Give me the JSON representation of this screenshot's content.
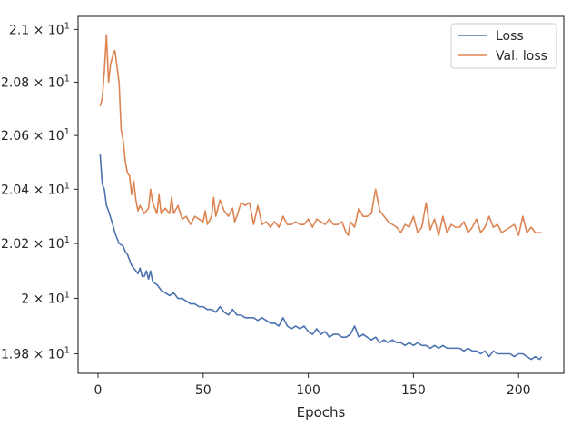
{
  "chart_data": {
    "type": "line",
    "title": "",
    "xlabel": "Epochs",
    "ylabel": "",
    "xlim": [
      -9.5,
      221.5
    ],
    "ylim": [
      19.73,
      21.05
    ],
    "yscale": "log",
    "grid": false,
    "legend_position": "top-right",
    "x_ticks": [
      0,
      50,
      100,
      150,
      200
    ],
    "x_tick_labels": [
      "0",
      "50",
      "100",
      "150",
      "200"
    ],
    "y_ticks": [
      19.8,
      20.0,
      20.2,
      20.4,
      20.6,
      20.8,
      21.0
    ],
    "y_tick_labels": [
      {
        "mantissa": "1.98",
        "sep": " × ",
        "base": "10",
        "exp": "1"
      },
      {
        "mantissa": "2",
        "sep": " × ",
        "base": "10",
        "exp": "1"
      },
      {
        "mantissa": "2.02",
        "sep": " × ",
        "base": "10",
        "exp": "1"
      },
      {
        "mantissa": "2.04",
        "sep": " × ",
        "base": "10",
        "exp": "1"
      },
      {
        "mantissa": "2.06",
        "sep": " × ",
        "base": "10",
        "exp": "1"
      },
      {
        "mantissa": "2.08",
        "sep": " × ",
        "base": "10",
        "exp": "1"
      },
      {
        "mantissa": "2.1",
        "sep": " × ",
        "base": "10",
        "exp": "1"
      }
    ],
    "series": [
      {
        "name": "Loss",
        "color": "#4c72b0",
        "points": [
          [
            1,
            20.53
          ],
          [
            2,
            20.42
          ],
          [
            3,
            20.4
          ],
          [
            4,
            20.34
          ],
          [
            5,
            20.32
          ],
          [
            7,
            20.27
          ],
          [
            8,
            20.24
          ],
          [
            9,
            20.22
          ],
          [
            10,
            20.2
          ],
          [
            12,
            20.19
          ],
          [
            13,
            20.17
          ],
          [
            14,
            20.16
          ],
          [
            16,
            20.12
          ],
          [
            17,
            20.11
          ],
          [
            18,
            20.1
          ],
          [
            19,
            20.09
          ],
          [
            20,
            20.11
          ],
          [
            21,
            20.08
          ],
          [
            22,
            20.08
          ],
          [
            23,
            20.1
          ],
          [
            24,
            20.07
          ],
          [
            25,
            20.1
          ],
          [
            26,
            20.06
          ],
          [
            28,
            20.05
          ],
          [
            30,
            20.03
          ],
          [
            32,
            20.02
          ],
          [
            34,
            20.01
          ],
          [
            36,
            20.02
          ],
          [
            38,
            20.0
          ],
          [
            40,
            20.0
          ],
          [
            42,
            19.99
          ],
          [
            44,
            19.98
          ],
          [
            46,
            19.98
          ],
          [
            48,
            19.97
          ],
          [
            50,
            19.97
          ],
          [
            52,
            19.96
          ],
          [
            54,
            19.96
          ],
          [
            56,
            19.95
          ],
          [
            58,
            19.97
          ],
          [
            60,
            19.95
          ],
          [
            62,
            19.94
          ],
          [
            64,
            19.96
          ],
          [
            66,
            19.94
          ],
          [
            68,
            19.94
          ],
          [
            70,
            19.93
          ],
          [
            72,
            19.93
          ],
          [
            74,
            19.93
          ],
          [
            76,
            19.92
          ],
          [
            78,
            19.93
          ],
          [
            80,
            19.92
          ],
          [
            82,
            19.91
          ],
          [
            84,
            19.91
          ],
          [
            86,
            19.9
          ],
          [
            88,
            19.93
          ],
          [
            90,
            19.9
          ],
          [
            92,
            19.89
          ],
          [
            94,
            19.9
          ],
          [
            96,
            19.89
          ],
          [
            98,
            19.9
          ],
          [
            100,
            19.88
          ],
          [
            102,
            19.87
          ],
          [
            104,
            19.89
          ],
          [
            106,
            19.87
          ],
          [
            108,
            19.88
          ],
          [
            110,
            19.86
          ],
          [
            112,
            19.87
          ],
          [
            114,
            19.87
          ],
          [
            116,
            19.86
          ],
          [
            118,
            19.86
          ],
          [
            120,
            19.87
          ],
          [
            122,
            19.9
          ],
          [
            124,
            19.86
          ],
          [
            126,
            19.87
          ],
          [
            128,
            19.86
          ],
          [
            130,
            19.85
          ],
          [
            132,
            19.86
          ],
          [
            134,
            19.84
          ],
          [
            136,
            19.85
          ],
          [
            138,
            19.84
          ],
          [
            140,
            19.85
          ],
          [
            142,
            19.84
          ],
          [
            144,
            19.84
          ],
          [
            146,
            19.83
          ],
          [
            148,
            19.84
          ],
          [
            150,
            19.83
          ],
          [
            152,
            19.84
          ],
          [
            154,
            19.83
          ],
          [
            156,
            19.83
          ],
          [
            158,
            19.82
          ],
          [
            160,
            19.83
          ],
          [
            162,
            19.82
          ],
          [
            164,
            19.83
          ],
          [
            166,
            19.82
          ],
          [
            168,
            19.82
          ],
          [
            170,
            19.82
          ],
          [
            172,
            19.82
          ],
          [
            174,
            19.81
          ],
          [
            176,
            19.82
          ],
          [
            178,
            19.81
          ],
          [
            180,
            19.81
          ],
          [
            182,
            19.8
          ],
          [
            184,
            19.81
          ],
          [
            186,
            19.79
          ],
          [
            188,
            19.81
          ],
          [
            190,
            19.8
          ],
          [
            192,
            19.8
          ],
          [
            194,
            19.8
          ],
          [
            196,
            19.8
          ],
          [
            198,
            19.79
          ],
          [
            200,
            19.8
          ],
          [
            202,
            19.8
          ],
          [
            204,
            19.79
          ],
          [
            206,
            19.78
          ],
          [
            208,
            19.79
          ],
          [
            210,
            19.78
          ],
          [
            211,
            19.79
          ]
        ]
      },
      {
        "name": "Val. loss",
        "color": "#dd8452",
        "points": [
          [
            1,
            20.71
          ],
          [
            2,
            20.74
          ],
          [
            3,
            20.84
          ],
          [
            4,
            20.98
          ],
          [
            5,
            20.8
          ],
          [
            6,
            20.87
          ],
          [
            7,
            20.9
          ],
          [
            8,
            20.92
          ],
          [
            9,
            20.86
          ],
          [
            10,
            20.8
          ],
          [
            11,
            20.62
          ],
          [
            12,
            20.58
          ],
          [
            13,
            20.5
          ],
          [
            14,
            20.46
          ],
          [
            15,
            20.45
          ],
          [
            16,
            20.38
          ],
          [
            17,
            20.43
          ],
          [
            18,
            20.36
          ],
          [
            19,
            20.32
          ],
          [
            20,
            20.34
          ],
          [
            22,
            20.31
          ],
          [
            24,
            20.33
          ],
          [
            25,
            20.4
          ],
          [
            26,
            20.35
          ],
          [
            28,
            20.31
          ],
          [
            29,
            20.38
          ],
          [
            30,
            20.31
          ],
          [
            32,
            20.33
          ],
          [
            34,
            20.31
          ],
          [
            35,
            20.37
          ],
          [
            36,
            20.31
          ],
          [
            38,
            20.34
          ],
          [
            40,
            20.29
          ],
          [
            42,
            20.3
          ],
          [
            44,
            20.27
          ],
          [
            46,
            20.3
          ],
          [
            48,
            20.29
          ],
          [
            50,
            20.28
          ],
          [
            51,
            20.32
          ],
          [
            52,
            20.27
          ],
          [
            54,
            20.3
          ],
          [
            55,
            20.37
          ],
          [
            56,
            20.3
          ],
          [
            58,
            20.36
          ],
          [
            60,
            20.32
          ],
          [
            62,
            20.3
          ],
          [
            64,
            20.33
          ],
          [
            65,
            20.28
          ],
          [
            66,
            20.3
          ],
          [
            68,
            20.35
          ],
          [
            70,
            20.34
          ],
          [
            72,
            20.35
          ],
          [
            74,
            20.27
          ],
          [
            76,
            20.34
          ],
          [
            78,
            20.27
          ],
          [
            80,
            20.28
          ],
          [
            82,
            20.26
          ],
          [
            84,
            20.28
          ],
          [
            86,
            20.26
          ],
          [
            88,
            20.3
          ],
          [
            90,
            20.27
          ],
          [
            92,
            20.27
          ],
          [
            94,
            20.28
          ],
          [
            96,
            20.27
          ],
          [
            98,
            20.27
          ],
          [
            100,
            20.29
          ],
          [
            102,
            20.26
          ],
          [
            104,
            20.29
          ],
          [
            106,
            20.28
          ],
          [
            108,
            20.27
          ],
          [
            110,
            20.29
          ],
          [
            112,
            20.27
          ],
          [
            114,
            20.27
          ],
          [
            116,
            20.28
          ],
          [
            118,
            20.24
          ],
          [
            119,
            20.23
          ],
          [
            120,
            20.28
          ],
          [
            122,
            20.26
          ],
          [
            124,
            20.33
          ],
          [
            126,
            20.3
          ],
          [
            128,
            20.3
          ],
          [
            130,
            20.31
          ],
          [
            132,
            20.4
          ],
          [
            134,
            20.32
          ],
          [
            136,
            20.3
          ],
          [
            138,
            20.28
          ],
          [
            140,
            20.27
          ],
          [
            142,
            20.26
          ],
          [
            144,
            20.24
          ],
          [
            146,
            20.27
          ],
          [
            148,
            20.26
          ],
          [
            150,
            20.3
          ],
          [
            152,
            20.24
          ],
          [
            154,
            20.26
          ],
          [
            156,
            20.35
          ],
          [
            158,
            20.25
          ],
          [
            160,
            20.29
          ],
          [
            162,
            20.23
          ],
          [
            164,
            20.3
          ],
          [
            166,
            20.24
          ],
          [
            168,
            20.27
          ],
          [
            170,
            20.26
          ],
          [
            172,
            20.26
          ],
          [
            174,
            20.28
          ],
          [
            176,
            20.24
          ],
          [
            178,
            20.26
          ],
          [
            180,
            20.29
          ],
          [
            182,
            20.24
          ],
          [
            184,
            20.26
          ],
          [
            186,
            20.3
          ],
          [
            188,
            20.26
          ],
          [
            190,
            20.27
          ],
          [
            192,
            20.24
          ],
          [
            194,
            20.25
          ],
          [
            196,
            20.26
          ],
          [
            198,
            20.27
          ],
          [
            200,
            20.23
          ],
          [
            202,
            20.3
          ],
          [
            204,
            20.24
          ],
          [
            206,
            20.26
          ],
          [
            208,
            20.24
          ],
          [
            210,
            20.24
          ],
          [
            211,
            20.24
          ]
        ]
      }
    ]
  }
}
